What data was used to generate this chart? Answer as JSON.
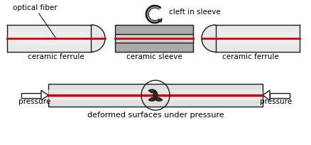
{
  "bg_color": "#ffffff",
  "border_color": "#1a1a1a",
  "fiber_color": "#dd0000",
  "ferrule_fill_light": "#e8e8e8",
  "ferrule_fill_grad": "#c8c8c8",
  "sleeve_fill_dark": "#aaaaaa",
  "sleeve_fill_mid": "#d0d0d0",
  "text_color": "#000000",
  "label_optical_fiber": "optical fiber",
  "label_cleft": "cleft in sleeve",
  "label_ceramic_ferrule_left": "ceramic ferrule",
  "label_ceramic_sleeve": "ceramic sleeve",
  "label_ceramic_ferrule_right": "ceramic ferrule",
  "label_pressure_left": "pressure",
  "label_pressure_right": "pressure",
  "label_bottom": "deformed surfaces under pressure",
  "fig_width": 4.39,
  "fig_height": 2.04,
  "dpi": 100
}
